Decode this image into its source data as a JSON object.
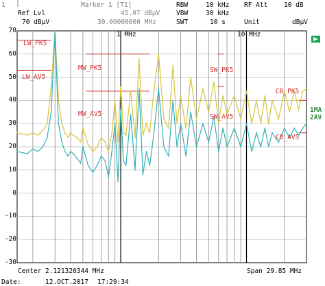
{
  "header": {
    "row1": {
      "marker_title": "Marker 1 [T1]",
      "rbw_label": "RBW",
      "rbw_value": "10 kHz",
      "rfatt_label": "RF Att",
      "rfatt_value": "10 dB"
    },
    "row2": {
      "ref_label": "Ref Lvl",
      "marker_level": "45.07 dBµV",
      "vbw_label": "VBW",
      "vbw_value": "30 kHz"
    },
    "row3": {
      "ref_value": "70 dBµV",
      "marker_freq": "30.00000000 MHz",
      "swt_label": "SWT",
      "swt_value": "10 s",
      "unit_label": "Unit",
      "unit_value": "dBµV"
    },
    "top_left_mark": "1"
  },
  "freq_markers": [
    "1 MHz",
    "10 MHz"
  ],
  "limit_labels": {
    "lw_pk": "LW_PK5",
    "lw_av": "LW_AV5",
    "mw_pk": "MW_PK5",
    "mw_av": "MW_AV5",
    "sw_pk": "SW_PK5",
    "sw_av": "SW_AV5",
    "cb_pk": "CB_PK5",
    "cb_av": "CB_AV5"
  },
  "trace_labels": [
    "1MA",
    "2AV"
  ],
  "y_ticks": [
    "70",
    "60",
    "50",
    "40",
    "30",
    "20",
    "10",
    "0",
    "-10",
    "-20",
    "-30"
  ],
  "footer": {
    "center": "Center 2.121320344 MHz",
    "span": "Span 29.85 MHz",
    "date_label": "Date:",
    "date": "12.OCT.2017",
    "time": "17:29:34"
  },
  "chart_data": {
    "type": "line",
    "ylabel": "dBµV",
    "ylim": [
      -30,
      70
    ],
    "x_scale": "log",
    "xlim_mhz": [
      0.15,
      30
    ],
    "series": [
      {
        "name": "1MA",
        "color": "#d6c43a",
        "x": [
          0.15,
          0.18,
          0.2,
          0.22,
          0.24,
          0.26,
          0.28,
          0.3,
          0.32,
          0.34,
          0.36,
          0.38,
          0.4,
          0.42,
          0.45,
          0.48,
          0.5,
          0.55,
          0.6,
          0.65,
          0.7,
          0.75,
          0.8,
          0.85,
          0.9,
          0.95,
          1.0,
          1.05,
          1.1,
          1.2,
          1.3,
          1.4,
          1.5,
          1.6,
          1.7,
          1.8,
          2.0,
          2.2,
          2.4,
          2.6,
          2.8,
          3.0,
          3.3,
          3.6,
          4.0,
          4.5,
          5.0,
          5.5,
          6.0,
          6.5,
          7.0,
          8.0,
          9.0,
          10,
          11,
          12,
          13,
          14,
          15,
          16,
          18,
          20,
          22,
          24,
          26,
          28,
          30
        ],
        "y": [
          26,
          25,
          26,
          25,
          27,
          30,
          46,
          70,
          40,
          30,
          26,
          24,
          26,
          25,
          24,
          22,
          28,
          21,
          18,
          20,
          24,
          22,
          18,
          26,
          40,
          22,
          46,
          26,
          25,
          44,
          24,
          58,
          25,
          30,
          26,
          40,
          60,
          32,
          28,
          55,
          30,
          42,
          28,
          50,
          32,
          45,
          35,
          48,
          30,
          42,
          34,
          42,
          32,
          44,
          30,
          40,
          30,
          42,
          30,
          40,
          32,
          44,
          35,
          44,
          36,
          44,
          45
        ]
      },
      {
        "name": "2AV",
        "color": "#2fb0b8",
        "x": [
          0.15,
          0.18,
          0.2,
          0.22,
          0.24,
          0.26,
          0.28,
          0.3,
          0.32,
          0.34,
          0.36,
          0.38,
          0.4,
          0.42,
          0.45,
          0.48,
          0.5,
          0.55,
          0.6,
          0.65,
          0.7,
          0.75,
          0.8,
          0.85,
          0.9,
          0.95,
          1.0,
          1.05,
          1.1,
          1.2,
          1.3,
          1.4,
          1.5,
          1.6,
          1.7,
          1.8,
          2.0,
          2.2,
          2.4,
          2.6,
          2.8,
          3.0,
          3.3,
          3.6,
          4.0,
          4.5,
          5.0,
          5.5,
          6.0,
          6.5,
          7.0,
          8.0,
          9.0,
          10,
          11,
          12,
          13,
          14,
          15,
          16,
          18,
          20,
          22,
          24,
          26,
          28,
          30
        ],
        "y": [
          18,
          17,
          19,
          18,
          20,
          24,
          35,
          70,
          30,
          22,
          18,
          16,
          18,
          17,
          15,
          13,
          20,
          12,
          9,
          12,
          16,
          14,
          7,
          18,
          30,
          5,
          36,
          14,
          12,
          34,
          10,
          45,
          8,
          18,
          12,
          22,
          45,
          20,
          16,
          40,
          20,
          30,
          16,
          35,
          20,
          30,
          22,
          33,
          18,
          28,
          20,
          28,
          20,
          30,
          18,
          26,
          20,
          28,
          20,
          26,
          22,
          28,
          24,
          28,
          25,
          28,
          30
        ]
      }
    ]
  }
}
